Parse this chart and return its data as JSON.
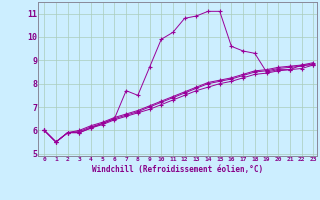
{
  "xlabel": "Windchill (Refroidissement éolien,°C)",
  "bg_color": "#cceeff",
  "line_color": "#990099",
  "grid_color": "#aaccbb",
  "axis_color": "#888899",
  "text_color": "#880088",
  "xlim": [
    -0.5,
    23.3
  ],
  "ylim": [
    4.9,
    11.5
  ],
  "yticks": [
    5,
    6,
    7,
    8,
    9,
    10,
    11
  ],
  "xticks": [
    0,
    1,
    2,
    3,
    4,
    5,
    6,
    7,
    8,
    9,
    10,
    11,
    12,
    13,
    14,
    15,
    16,
    17,
    18,
    19,
    20,
    21,
    22,
    23
  ],
  "series1_x": [
    0,
    1,
    2,
    3,
    4,
    5,
    6,
    7,
    8,
    9,
    10,
    11,
    12,
    13,
    14,
    15,
    16,
    17,
    18,
    19,
    20,
    21,
    22,
    23
  ],
  "series1_y": [
    6.0,
    5.5,
    5.9,
    5.9,
    6.1,
    6.3,
    6.5,
    7.7,
    7.5,
    8.7,
    9.9,
    10.2,
    10.8,
    10.9,
    11.1,
    11.1,
    9.6,
    9.4,
    9.3,
    8.5,
    8.6,
    8.6,
    8.8,
    8.8
  ],
  "series2_x": [
    0,
    1,
    2,
    3,
    4,
    5,
    6,
    7,
    8,
    9,
    10,
    11,
    12,
    13,
    14,
    15,
    16,
    17,
    18,
    19,
    20,
    21,
    22,
    23
  ],
  "series2_y": [
    6.0,
    5.5,
    5.9,
    5.9,
    6.1,
    6.25,
    6.45,
    6.6,
    6.75,
    6.9,
    7.1,
    7.3,
    7.5,
    7.7,
    7.85,
    8.0,
    8.1,
    8.25,
    8.4,
    8.45,
    8.55,
    8.6,
    8.65,
    8.8
  ],
  "series3_x": [
    0,
    1,
    2,
    3,
    4,
    5,
    6,
    7,
    8,
    9,
    10,
    11,
    12,
    13,
    14,
    15,
    16,
    17,
    18,
    19,
    20,
    21,
    22,
    23
  ],
  "series3_y": [
    6.0,
    5.5,
    5.9,
    5.95,
    6.15,
    6.3,
    6.5,
    6.65,
    6.8,
    7.0,
    7.2,
    7.4,
    7.6,
    7.8,
    8.0,
    8.1,
    8.2,
    8.35,
    8.5,
    8.55,
    8.65,
    8.7,
    8.75,
    8.85
  ],
  "series4_x": [
    0,
    1,
    2,
    3,
    4,
    5,
    6,
    7,
    8,
    9,
    10,
    11,
    12,
    13,
    14,
    15,
    16,
    17,
    18,
    19,
    20,
    21,
    22,
    23
  ],
  "series4_y": [
    6.0,
    5.5,
    5.9,
    6.0,
    6.2,
    6.35,
    6.55,
    6.7,
    6.85,
    7.05,
    7.25,
    7.45,
    7.65,
    7.85,
    8.05,
    8.15,
    8.25,
    8.4,
    8.55,
    8.6,
    8.7,
    8.75,
    8.8,
    8.9
  ]
}
